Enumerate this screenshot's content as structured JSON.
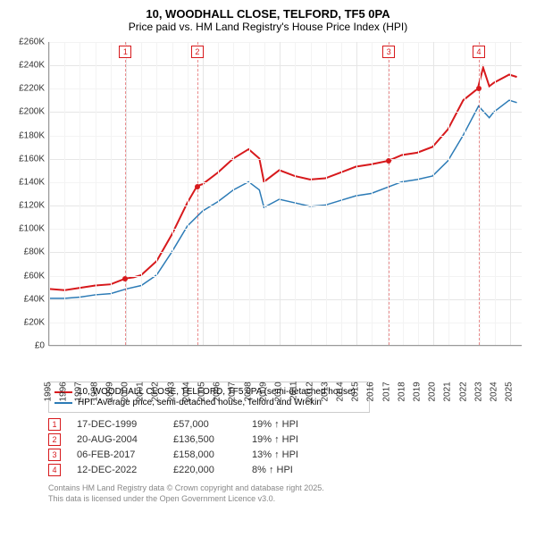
{
  "title": "10, WOODHALL CLOSE, TELFORD, TF5 0PA",
  "subtitle": "Price paid vs. HM Land Registry's House Price Index (HPI)",
  "chart": {
    "type": "line",
    "xlim": [
      1995,
      2025.8
    ],
    "ylim": [
      0,
      260000
    ],
    "ytick_step": 20000,
    "ytick_labels": [
      "£0",
      "£20K",
      "£40K",
      "£60K",
      "£80K",
      "£100K",
      "£120K",
      "£140K",
      "£160K",
      "£180K",
      "£200K",
      "£220K",
      "£240K",
      "£260K"
    ],
    "xticks": [
      1995,
      1996,
      1997,
      1998,
      1999,
      2000,
      2001,
      2002,
      2003,
      2004,
      2005,
      2006,
      2007,
      2008,
      2009,
      2010,
      2011,
      2012,
      2013,
      2014,
      2015,
      2016,
      2017,
      2018,
      2019,
      2020,
      2021,
      2022,
      2023,
      2024,
      2025
    ],
    "background_color": "#ffffff",
    "grid_major_color": "#e6e6e6",
    "grid_minor_color": "#f3f3f3",
    "series": [
      {
        "name": "10, WOODHALL CLOSE, TELFORD, TF5 0PA (semi-detached house)",
        "color": "#d7191c",
        "width": 2,
        "data": [
          [
            1995,
            48000
          ],
          [
            1996,
            47000
          ],
          [
            1997,
            49000
          ],
          [
            1998,
            51000
          ],
          [
            1999,
            52000
          ],
          [
            1999.96,
            57000
          ],
          [
            2000.5,
            58000
          ],
          [
            2001,
            60000
          ],
          [
            2002,
            72000
          ],
          [
            2003,
            95000
          ],
          [
            2004,
            122000
          ],
          [
            2004.64,
            136500
          ],
          [
            2005,
            138000
          ],
          [
            2006,
            148000
          ],
          [
            2007,
            160000
          ],
          [
            2008,
            168000
          ],
          [
            2008.7,
            160000
          ],
          [
            2009,
            140000
          ],
          [
            2010,
            150000
          ],
          [
            2011,
            145000
          ],
          [
            2012,
            142000
          ],
          [
            2013,
            143000
          ],
          [
            2014,
            148000
          ],
          [
            2015,
            153000
          ],
          [
            2016,
            155000
          ],
          [
            2017.1,
            158000
          ],
          [
            2018,
            163000
          ],
          [
            2019,
            165000
          ],
          [
            2020,
            170000
          ],
          [
            2021,
            185000
          ],
          [
            2022,
            210000
          ],
          [
            2022.95,
            220000
          ],
          [
            2023.3,
            238000
          ],
          [
            2023.7,
            222000
          ],
          [
            2024,
            225000
          ],
          [
            2025,
            232000
          ],
          [
            2025.5,
            230000
          ]
        ]
      },
      {
        "name": "HPI: Average price, semi-detached house, Telford and Wrekin",
        "color": "#2c7bb6",
        "width": 1.5,
        "data": [
          [
            1995,
            40000
          ],
          [
            1996,
            40000
          ],
          [
            1997,
            41000
          ],
          [
            1998,
            43000
          ],
          [
            1999,
            44000
          ],
          [
            2000,
            48000
          ],
          [
            2001,
            51000
          ],
          [
            2002,
            60000
          ],
          [
            2003,
            80000
          ],
          [
            2004,
            102000
          ],
          [
            2005,
            115000
          ],
          [
            2006,
            123000
          ],
          [
            2007,
            133000
          ],
          [
            2008,
            140000
          ],
          [
            2008.7,
            133000
          ],
          [
            2009,
            118000
          ],
          [
            2010,
            125000
          ],
          [
            2011,
            122000
          ],
          [
            2012,
            119000
          ],
          [
            2013,
            120000
          ],
          [
            2014,
            124000
          ],
          [
            2015,
            128000
          ],
          [
            2016,
            130000
          ],
          [
            2017,
            135000
          ],
          [
            2018,
            140000
          ],
          [
            2019,
            142000
          ],
          [
            2020,
            145000
          ],
          [
            2021,
            158000
          ],
          [
            2022,
            180000
          ],
          [
            2023,
            205000
          ],
          [
            2023.7,
            195000
          ],
          [
            2024,
            200000
          ],
          [
            2025,
            210000
          ],
          [
            2025.5,
            208000
          ]
        ]
      }
    ],
    "sale_markers": [
      {
        "n": "1",
        "x": 1999.96,
        "y": 57000
      },
      {
        "n": "2",
        "x": 2004.64,
        "y": 136500
      },
      {
        "n": "3",
        "x": 2017.1,
        "y": 158000
      },
      {
        "n": "4",
        "x": 2022.95,
        "y": 220000
      }
    ]
  },
  "legend": {
    "items": [
      {
        "color": "#d7191c",
        "label": "10, WOODHALL CLOSE, TELFORD, TF5 0PA (semi-detached house)"
      },
      {
        "color": "#2c7bb6",
        "label": "HPI: Average price, semi-detached house, Telford and Wrekin"
      }
    ]
  },
  "sales": [
    {
      "n": "1",
      "date": "17-DEC-1999",
      "price": "£57,000",
      "hpi": "19% ↑ HPI"
    },
    {
      "n": "2",
      "date": "20-AUG-2004",
      "price": "£136,500",
      "hpi": "19% ↑ HPI"
    },
    {
      "n": "3",
      "date": "06-FEB-2017",
      "price": "£158,000",
      "hpi": "13% ↑ HPI"
    },
    {
      "n": "4",
      "date": "12-DEC-2022",
      "price": "£220,000",
      "hpi": "8% ↑ HPI"
    }
  ],
  "footer": {
    "line1": "Contains HM Land Registry data © Crown copyright and database right 2025.",
    "line2": "This data is licensed under the Open Government Licence v3.0."
  }
}
